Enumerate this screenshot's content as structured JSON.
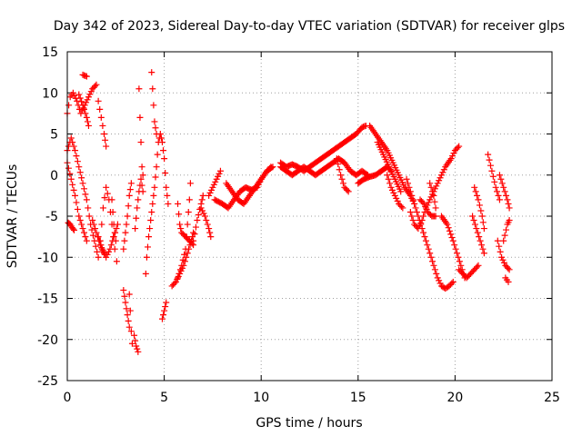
{
  "chart_data": {
    "type": "scatter",
    "title": "Day 342 of 2023, Sidereal Day-to-day VTEC variation (SDTVAR) for receiver glps",
    "xlabel": "GPS time / hours",
    "ylabel": "SDTVAR / TECUs",
    "xlim": [
      0,
      25
    ],
    "ylim": [
      -25,
      15
    ],
    "xticks": [
      "0",
      "5",
      "10",
      "15",
      "20",
      "25"
    ],
    "yticks": [
      "15",
      "10",
      "5",
      "0",
      "-5",
      "-10",
      "-15",
      "-20",
      "-25"
    ],
    "grid": true,
    "marker": "plus",
    "color": "#ff0000",
    "segments": [
      [
        [
          0.0,
          7.5
        ],
        [
          0.15,
          9.5
        ],
        [
          0.3,
          10.0
        ],
        [
          0.5,
          9.0
        ],
        [
          0.7,
          7.5
        ],
        [
          0.9,
          8.5
        ],
        [
          1.1,
          9.5
        ],
        [
          1.3,
          10.5
        ],
        [
          1.5,
          11.0
        ]
      ],
      [
        [
          0.0,
          3.0
        ],
        [
          0.2,
          4.5
        ],
        [
          0.4,
          3.0
        ],
        [
          0.6,
          1.0
        ],
        [
          0.8,
          -1.0
        ],
        [
          1.0,
          -3.0
        ],
        [
          1.2,
          -6.0
        ],
        [
          1.4,
          -8.0
        ],
        [
          1.6,
          -10.0
        ]
      ],
      [
        [
          0.0,
          1.5
        ],
        [
          0.2,
          -0.5
        ],
        [
          0.4,
          -2.5
        ],
        [
          0.6,
          -5.0
        ],
        [
          0.8,
          -6.5
        ],
        [
          1.0,
          -8.0
        ]
      ],
      [
        [
          0.05,
          -5.8
        ],
        [
          0.15,
          -6.0
        ],
        [
          0.25,
          -6.4
        ],
        [
          0.35,
          -6.7
        ]
      ],
      [
        [
          0.6,
          9.8
        ],
        [
          0.8,
          8.5
        ],
        [
          1.0,
          7.0
        ],
        [
          1.1,
          6.0
        ]
      ],
      [
        [
          0.8,
          12.2
        ],
        [
          1.0,
          12.0
        ]
      ],
      [
        [
          1.6,
          9.0
        ],
        [
          1.75,
          7.0
        ],
        [
          1.9,
          5.0
        ],
        [
          2.0,
          3.5
        ]
      ],
      [
        [
          1.7,
          -8.0
        ],
        [
          1.85,
          -4.0
        ],
        [
          2.0,
          -1.5
        ],
        [
          2.15,
          -3.0
        ],
        [
          2.3,
          -6.0
        ],
        [
          2.45,
          -9.0
        ]
      ],
      [
        [
          1.6,
          -7.5
        ],
        [
          1.8,
          -9.0
        ],
        [
          2.0,
          -10.0
        ],
        [
          2.2,
          -9.0
        ],
        [
          2.4,
          -7.5
        ],
        [
          2.6,
          -6.0
        ]
      ],
      [
        [
          1.3,
          -5.5
        ],
        [
          1.5,
          -7.0
        ],
        [
          1.7,
          -8.5
        ],
        [
          1.9,
          -9.5
        ]
      ],
      [
        [
          2.3,
          -3.0
        ],
        [
          2.4,
          -6.0
        ],
        [
          2.5,
          -8.0
        ],
        [
          2.55,
          -10.5
        ]
      ],
      [
        [
          2.9,
          -9.0
        ],
        [
          3.0,
          -7.0
        ],
        [
          3.1,
          -5.0
        ],
        [
          3.2,
          -2.5
        ],
        [
          3.3,
          -1.0
        ]
      ],
      [
        [
          2.9,
          -14.0
        ],
        [
          3.0,
          -15.5
        ],
        [
          3.1,
          -17.0
        ],
        [
          3.2,
          -18.5
        ]
      ],
      [
        [
          3.2,
          -14.5
        ],
        [
          3.25,
          -16.5
        ],
        [
          3.3,
          -19.0
        ],
        [
          3.35,
          -20.5
        ]
      ],
      [
        [
          3.45,
          -19.5
        ],
        [
          3.55,
          -20.8
        ],
        [
          3.65,
          -21.5
        ]
      ],
      [
        [
          3.5,
          -6.5
        ],
        [
          3.6,
          -4.0
        ],
        [
          3.7,
          -2.0
        ],
        [
          3.8,
          -0.5
        ],
        [
          3.9,
          -2.0
        ]
      ],
      [
        [
          3.7,
          10.5
        ],
        [
          3.75,
          7.0
        ],
        [
          3.8,
          4.0
        ],
        [
          3.85,
          1.0
        ],
        [
          3.9,
          0.0
        ]
      ],
      [
        [
          4.05,
          -12.0
        ],
        [
          4.1,
          -10.0
        ],
        [
          4.2,
          -7.5
        ],
        [
          4.3,
          -5.5
        ],
        [
          4.4,
          -3.5
        ],
        [
          4.5,
          -1.5
        ],
        [
          4.6,
          1.0
        ],
        [
          4.7,
          4.0
        ],
        [
          4.8,
          5.0
        ],
        [
          4.9,
          4.0
        ],
        [
          5.0,
          2.0
        ],
        [
          5.1,
          -1.5
        ],
        [
          5.2,
          -3.5
        ]
      ],
      [
        [
          4.35,
          12.5
        ],
        [
          4.4,
          10.5
        ],
        [
          4.45,
          8.5
        ],
        [
          4.5,
          6.5
        ],
        [
          4.6,
          5.0
        ]
      ],
      [
        [
          4.9,
          -17.5
        ],
        [
          5.0,
          -16.5
        ],
        [
          5.1,
          -15.5
        ]
      ],
      [
        [
          5.4,
          -13.5
        ],
        [
          5.6,
          -13.0
        ],
        [
          5.8,
          -12.0
        ],
        [
          6.0,
          -11.0
        ],
        [
          6.2,
          -9.5
        ],
        [
          6.4,
          -8.0
        ],
        [
          6.5,
          -7.0
        ]
      ],
      [
        [
          5.7,
          -12.5
        ],
        [
          5.9,
          -11.0
        ],
        [
          6.1,
          -9.0
        ],
        [
          6.2,
          -6.0
        ],
        [
          6.3,
          -3.0
        ],
        [
          6.35,
          -1.0
        ]
      ],
      [
        [
          5.7,
          -3.5
        ],
        [
          5.8,
          -6.0
        ],
        [
          5.9,
          -7.0
        ],
        [
          6.1,
          -7.5
        ],
        [
          6.3,
          -8.0
        ],
        [
          6.5,
          -8.5
        ]
      ],
      [
        [
          6.5,
          -8.0
        ],
        [
          6.7,
          -5.5
        ],
        [
          6.9,
          -3.5
        ],
        [
          7.0,
          -2.5
        ]
      ],
      [
        [
          6.9,
          -4.0
        ],
        [
          7.1,
          -5.0
        ],
        [
          7.3,
          -6.5
        ],
        [
          7.4,
          -7.5
        ]
      ],
      [
        [
          7.3,
          -2.5
        ],
        [
          7.5,
          -1.5
        ],
        [
          7.7,
          -0.5
        ],
        [
          7.9,
          0.5
        ]
      ],
      [
        [
          7.6,
          -3.0
        ],
        [
          8.0,
          -3.5
        ],
        [
          8.3,
          -4.0
        ],
        [
          8.6,
          -3.0
        ],
        [
          8.9,
          -2.0
        ],
        [
          9.2,
          -1.5
        ],
        [
          9.5,
          -1.8
        ],
        [
          9.8,
          -1.5
        ],
        [
          10.0,
          -0.5
        ],
        [
          10.3,
          0.5
        ],
        [
          10.5,
          1.0
        ]
      ],
      [
        [
          8.2,
          -1.0
        ],
        [
          8.5,
          -2.0
        ],
        [
          8.8,
          -3.0
        ],
        [
          9.1,
          -3.5
        ],
        [
          9.4,
          -2.5
        ],
        [
          9.7,
          -1.5
        ],
        [
          10.0,
          -0.5
        ],
        [
          10.3,
          0.5
        ],
        [
          10.6,
          1.0
        ]
      ],
      [
        [
          11.0,
          1.0
        ],
        [
          11.3,
          0.5
        ],
        [
          11.6,
          0.0
        ],
        [
          11.9,
          0.5
        ],
        [
          12.2,
          1.0
        ],
        [
          12.5,
          0.5
        ],
        [
          12.8,
          0.0
        ],
        [
          13.1,
          0.5
        ],
        [
          13.4,
          1.0
        ],
        [
          13.7,
          1.5
        ],
        [
          14.0,
          2.0
        ],
        [
          14.3,
          1.5
        ],
        [
          14.6,
          0.5
        ],
        [
          14.9,
          0.0
        ],
        [
          15.2,
          0.5
        ],
        [
          15.5,
          0.0
        ]
      ],
      [
        [
          11.0,
          1.5
        ],
        [
          11.3,
          1.0
        ],
        [
          11.6,
          1.3
        ],
        [
          11.9,
          1.0
        ],
        [
          12.2,
          0.5
        ],
        [
          12.5,
          1.0
        ],
        [
          12.8,
          1.5
        ],
        [
          13.1,
          2.0
        ],
        [
          13.4,
          2.5
        ],
        [
          13.7,
          3.0
        ],
        [
          14.0,
          3.5
        ],
        [
          14.3,
          4.0
        ],
        [
          14.6,
          4.5
        ],
        [
          14.9,
          5.0
        ],
        [
          15.2,
          5.8
        ],
        [
          15.4,
          6.0
        ]
      ],
      [
        [
          13.9,
          2.0
        ],
        [
          14.1,
          0.0
        ],
        [
          14.3,
          -1.5
        ],
        [
          14.5,
          -2.0
        ]
      ],
      [
        [
          15.0,
          -1.0
        ],
        [
          15.3,
          -0.5
        ],
        [
          15.6,
          -0.2
        ],
        [
          15.9,
          0.0
        ],
        [
          16.2,
          0.5
        ],
        [
          16.5,
          1.0
        ],
        [
          16.7,
          0.5
        ]
      ],
      [
        [
          15.6,
          6.0
        ],
        [
          15.9,
          5.0
        ],
        [
          16.2,
          4.0
        ],
        [
          16.5,
          3.0
        ],
        [
          16.8,
          1.5
        ],
        [
          17.1,
          0.0
        ],
        [
          17.4,
          -1.5
        ],
        [
          17.7,
          -2.5
        ],
        [
          17.9,
          -3.5
        ]
      ],
      [
        [
          16.0,
          4.0
        ],
        [
          16.3,
          2.5
        ],
        [
          16.6,
          1.0
        ],
        [
          16.9,
          -0.5
        ],
        [
          17.2,
          -2.0
        ]
      ],
      [
        [
          16.5,
          0.0
        ],
        [
          16.7,
          -1.5
        ],
        [
          16.9,
          -2.5
        ],
        [
          17.1,
          -3.5
        ],
        [
          17.3,
          -4.0
        ]
      ],
      [
        [
          17.5,
          -0.5
        ],
        [
          17.7,
          -2.0
        ],
        [
          17.9,
          -3.5
        ],
        [
          18.1,
          -5.0
        ],
        [
          18.3,
          -6.5
        ],
        [
          18.5,
          -8.0
        ],
        [
          18.7,
          -9.5
        ],
        [
          18.9,
          -11.0
        ],
        [
          19.1,
          -12.5
        ],
        [
          19.3,
          -13.5
        ],
        [
          19.5,
          -13.8
        ],
        [
          19.7,
          -13.5
        ],
        [
          19.9,
          -13.0
        ]
      ],
      [
        [
          17.7,
          -4.5
        ],
        [
          17.9,
          -6.0
        ],
        [
          18.1,
          -6.5
        ],
        [
          18.3,
          -5.5
        ],
        [
          18.5,
          -4.0
        ],
        [
          18.7,
          -3.0
        ],
        [
          18.9,
          -2.0
        ],
        [
          19.1,
          -1.0
        ],
        [
          19.3,
          0.0
        ],
        [
          19.5,
          1.0
        ],
        [
          19.8,
          2.0
        ],
        [
          20.0,
          3.0
        ],
        [
          20.2,
          3.5
        ]
      ],
      [
        [
          18.2,
          -3.0
        ],
        [
          18.4,
          -3.5
        ],
        [
          18.6,
          -4.5
        ],
        [
          18.8,
          -5.0
        ],
        [
          19.0,
          -5.0
        ]
      ],
      [
        [
          18.7,
          -1.0
        ],
        [
          18.9,
          -2.5
        ],
        [
          19.0,
          -4.0
        ]
      ],
      [
        [
          19.3,
          -5.0
        ],
        [
          19.6,
          -6.0
        ],
        [
          19.9,
          -8.0
        ],
        [
          20.1,
          -9.5
        ],
        [
          20.3,
          -11.0
        ],
        [
          20.5,
          -12.5
        ]
      ],
      [
        [
          20.2,
          -11.5
        ],
        [
          20.4,
          -12.0
        ],
        [
          20.6,
          -12.5
        ],
        [
          20.8,
          -12.0
        ],
        [
          21.0,
          -11.5
        ],
        [
          21.2,
          -11.0
        ]
      ],
      [
        [
          20.9,
          -5.0
        ],
        [
          21.1,
          -6.5
        ],
        [
          21.3,
          -8.0
        ],
        [
          21.5,
          -9.5
        ]
      ],
      [
        [
          21.0,
          -1.5
        ],
        [
          21.2,
          -3.0
        ],
        [
          21.4,
          -5.0
        ],
        [
          21.5,
          -6.5
        ]
      ],
      [
        [
          21.7,
          2.5
        ],
        [
          21.9,
          0.5
        ],
        [
          22.1,
          -1.5
        ],
        [
          22.3,
          -3.0
        ]
      ],
      [
        [
          22.2,
          -8.0
        ],
        [
          22.4,
          -10.0
        ],
        [
          22.6,
          -11.0
        ],
        [
          22.8,
          -11.5
        ]
      ],
      [
        [
          22.3,
          0.0
        ],
        [
          22.5,
          -1.5
        ],
        [
          22.7,
          -3.0
        ],
        [
          22.8,
          -4.0
        ]
      ],
      [
        [
          22.5,
          -8.0
        ],
        [
          22.7,
          -6.0
        ],
        [
          22.8,
          -5.5
        ]
      ],
      [
        [
          22.6,
          -12.5
        ],
        [
          22.75,
          -13.0
        ]
      ]
    ]
  }
}
